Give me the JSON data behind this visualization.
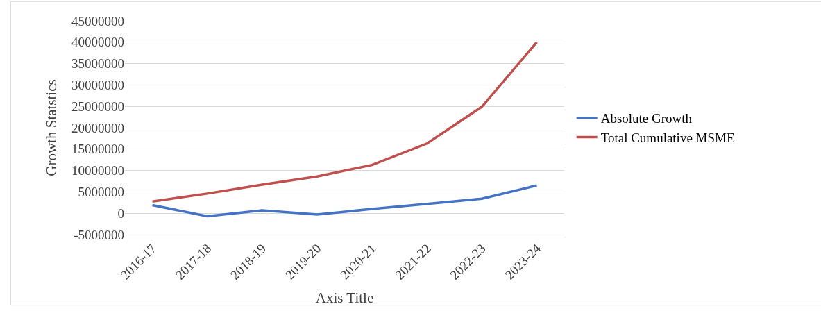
{
  "chart_data": {
    "type": "line",
    "xlabel": "Axis Title",
    "ylabel": "Growth Statstics",
    "categories": [
      "2016-17",
      "2017-18",
      "2018-19",
      "2019-20",
      "2020-21",
      "2021-22",
      "2022-23",
      "2023-24"
    ],
    "series": [
      {
        "name": "Absolute Growth",
        "color": "#4472c4",
        "values": [
          1900000,
          -700000,
          700000,
          -300000,
          1000000,
          2200000,
          3400000,
          6500000
        ]
      },
      {
        "name": "Total Cumulative MSME",
        "color": "#c0504d",
        "values": [
          2750000,
          4600000,
          6700000,
          8600000,
          11300000,
          16300000,
          24900000,
          40000000
        ]
      }
    ],
    "ylim": [
      -5000000,
      45000000
    ],
    "yticks": [
      -5000000,
      0,
      5000000,
      10000000,
      15000000,
      20000000,
      25000000,
      30000000,
      35000000,
      40000000,
      45000000
    ],
    "grid": "y",
    "legend": "right",
    "marker": "none",
    "line_style": "solid"
  }
}
